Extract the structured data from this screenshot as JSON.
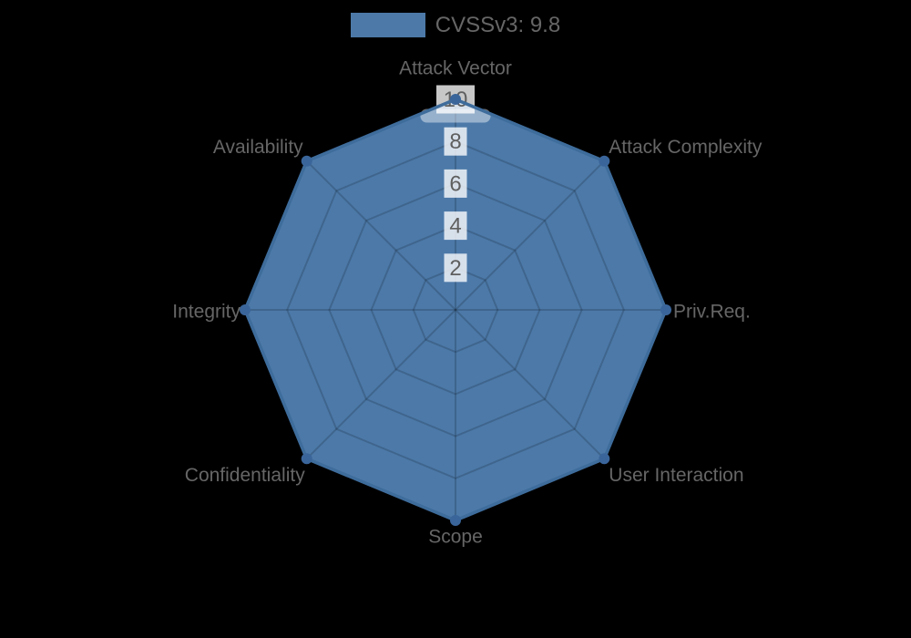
{
  "chart_data": {
    "type": "radar",
    "categories": [
      "Attack Vector",
      "Attack Complexity",
      "Priv.Req.",
      "User Interaction",
      "Scope",
      "Confidentiality",
      "Integrity",
      "Availability"
    ],
    "series": [
      {
        "name": "CVSSv3: 9.8",
        "values": [
          10,
          10,
          10,
          10,
          10,
          10,
          10,
          10
        ]
      }
    ],
    "rmin": 0,
    "rmax": 10,
    "ticks": [
      2,
      4,
      6,
      8,
      10
    ],
    "grid": "polygon",
    "grid_on": true,
    "legend_position": "top",
    "colors": {
      "background": "#000000",
      "fill": "#4c79a8",
      "stroke": "#3e6c9b",
      "point": "#3a659a",
      "grid_line": "rgba(0,0,0,0.16)",
      "text": "#666666",
      "tick_text": "#5f5f5f",
      "tick_backdrop": "rgba(255,255,255,0.78)",
      "tick_backdrop_soft": "rgba(255,255,255,0.42)"
    }
  }
}
